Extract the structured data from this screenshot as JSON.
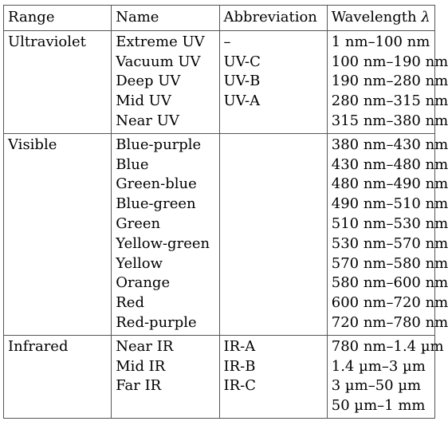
{
  "table": {
    "headers": {
      "range": "Range",
      "name": "Name",
      "abbreviation": "Abbreviation",
      "wavelength": "Wavelength ",
      "wavelength_symbol": "λ"
    },
    "groups": [
      {
        "range": "Ultraviolet",
        "names": [
          "Extreme UV",
          "Vacuum UV",
          "Deep UV",
          "Mid UV",
          "Near UV"
        ],
        "abbreviations": [
          "–",
          "UV-C",
          "UV-B",
          "UV-A"
        ],
        "wavelengths": [
          "1 nm–100 nm",
          "100 nm–190 nm",
          "190 nm–280 nm",
          "280 nm–315 nm",
          "315 nm–380 nm"
        ]
      },
      {
        "range": "Visible",
        "names": [
          "Blue-purple",
          "Blue",
          "Green-blue",
          "Blue-green",
          "Green",
          "Yellow-green",
          "Yellow",
          "Orange",
          "Red",
          "Red-purple"
        ],
        "abbreviations": [],
        "wavelengths": [
          "380 nm–430 nm",
          "430 nm–480 nm",
          "480 nm–490 nm",
          "490 nm–510 nm",
          "510 nm–530 nm",
          "530 nm–570 nm",
          "570 nm–580 nm",
          "580 nm–600 nm",
          "600 nm–720 nm",
          "720 nm–780 nm"
        ]
      },
      {
        "range": "Infrared",
        "names": [
          "Near IR",
          "Mid IR",
          "Far IR"
        ],
        "abbreviations": [
          "IR-A",
          "IR-B",
          "IR-C"
        ],
        "wavelengths": [
          "780 nm–1.4 µm",
          "1.4 µm–3 µm",
          "3 µm–50 µm",
          "50 µm–1 mm"
        ]
      }
    ]
  }
}
